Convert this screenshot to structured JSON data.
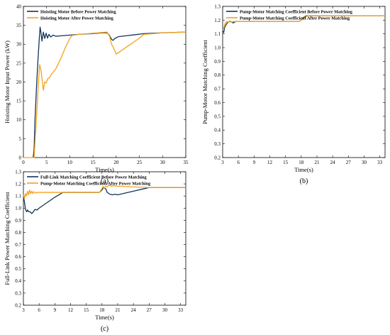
{
  "colors": {
    "before": "#12355b",
    "after": "#f5a21b",
    "axis": "#000000"
  },
  "chart_data": [
    {
      "id": "a",
      "type": "line",
      "caption": "(a)",
      "xlabel": "Time(s)",
      "ylabel": "Hoisting Motor Input Power (kW)",
      "xlim": [
        0,
        35
      ],
      "ylim": [
        0,
        40
      ],
      "xticks": [
        0,
        5,
        10,
        15,
        20,
        25,
        30,
        35
      ],
      "yticks": [
        0,
        5,
        10,
        15,
        20,
        25,
        30,
        35,
        40
      ],
      "tick_decimals": 0,
      "legend_position": "top-left",
      "series": [
        {
          "name": "Hoisting Motor Before Power Matching",
          "color_key": "before",
          "points": [
            [
              2.1,
              0
            ],
            [
              2.3,
              2
            ],
            [
              2.5,
              10
            ],
            [
              2.8,
              18
            ],
            [
              3.1,
              25
            ],
            [
              3.4,
              31
            ],
            [
              3.6,
              34.5
            ],
            [
              3.8,
              33
            ],
            [
              4.0,
              30.8
            ],
            [
              4.3,
              33.2
            ],
            [
              4.6,
              31.5
            ],
            [
              4.9,
              32.9
            ],
            [
              5.2,
              31.6
            ],
            [
              5.5,
              32.6
            ],
            [
              5.9,
              31.9
            ],
            [
              6.4,
              32.4
            ],
            [
              7.0,
              32.1
            ],
            [
              8,
              32.2
            ],
            [
              10,
              32.4
            ],
            [
              12,
              32.6
            ],
            [
              15,
              32.8
            ],
            [
              17,
              33.0
            ],
            [
              18,
              33.0
            ],
            [
              18.5,
              32.4
            ],
            [
              19,
              31.3
            ],
            [
              19.3,
              31.0
            ],
            [
              19.7,
              31.5
            ],
            [
              20.5,
              32.0
            ],
            [
              22,
              32.2
            ],
            [
              24,
              32.5
            ],
            [
              26,
              32.8
            ],
            [
              28,
              32.9
            ],
            [
              30,
              33.0
            ],
            [
              32,
              33.1
            ],
            [
              35,
              33.2
            ]
          ]
        },
        {
          "name": "Hoisting Motor After Power Matching",
          "color_key": "after",
          "points": [
            [
              0,
              0
            ],
            [
              2.3,
              0
            ],
            [
              2.5,
              4
            ],
            [
              2.8,
              10
            ],
            [
              3.2,
              19
            ],
            [
              3.5,
              24.6
            ],
            [
              3.8,
              23
            ],
            [
              4.1,
              20
            ],
            [
              4.3,
              17.8
            ],
            [
              4.6,
              20
            ],
            [
              4.9,
              19.7
            ],
            [
              5.3,
              21
            ],
            [
              5.6,
              21.1
            ],
            [
              6,
              22
            ],
            [
              7,
              23.5
            ],
            [
              8,
              26
            ],
            [
              9,
              29
            ],
            [
              10,
              31.5
            ],
            [
              10.5,
              32.3
            ],
            [
              12,
              32.6
            ],
            [
              15,
              32.9
            ],
            [
              17,
              33.1
            ],
            [
              18,
              33.2
            ],
            [
              18.6,
              32.0
            ],
            [
              19,
              30.0
            ],
            [
              19.5,
              28.8
            ],
            [
              20,
              27.4
            ],
            [
              21,
              28.2
            ],
            [
              23,
              29.9
            ],
            [
              25,
              31.6
            ],
            [
              26,
              32.6
            ],
            [
              28,
              32.8
            ],
            [
              30,
              33.0
            ],
            [
              32,
              33.1
            ],
            [
              35,
              33.2
            ]
          ]
        }
      ]
    },
    {
      "id": "b",
      "type": "line",
      "caption": "(b)",
      "xlabel": "Time(s)",
      "ylabel": "Pump-Motor Matching Coefficient",
      "xlim": [
        3,
        34
      ],
      "ylim": [
        0.2,
        1.3
      ],
      "xticks": [
        3,
        6,
        9,
        12,
        15,
        18,
        21,
        24,
        27,
        30,
        33
      ],
      "yticks": [
        0.2,
        0.3,
        0.4,
        0.5,
        0.6,
        0.7,
        0.8,
        0.9,
        1.0,
        1.1,
        1.2,
        1.3
      ],
      "tick_decimals": 1,
      "legend_position": "top-left",
      "series": [
        {
          "name": "Pump-Motor Matching Coefficient Before Power Matching",
          "color_key": "before",
          "points": [
            [
              3,
              1.12
            ],
            [
              3.2,
              1.11
            ],
            [
              3.4,
              1.15
            ],
            [
              3.7,
              1.17
            ],
            [
              4,
              1.185
            ],
            [
              4.5,
              1.19
            ],
            [
              5,
              1.18
            ],
            [
              5.5,
              1.19
            ],
            [
              6,
              1.19
            ],
            [
              10,
              1.19
            ],
            [
              15,
              1.19
            ],
            [
              17.5,
              1.19
            ],
            [
              18,
              1.2
            ],
            [
              18.5,
              1.22
            ],
            [
              19,
              1.23
            ],
            [
              19.5,
              1.232
            ],
            [
              22,
              1.232
            ],
            [
              27,
              1.232
            ],
            [
              34,
              1.232
            ]
          ]
        },
        {
          "name": "Pump-Motor Matching Coefficient After Power Matching",
          "color_key": "after",
          "points": [
            [
              3,
              1.13
            ],
            [
              3.2,
              1.14
            ],
            [
              3.5,
              1.18
            ],
            [
              3.8,
              1.19
            ],
            [
              4.1,
              1.185
            ],
            [
              4.4,
              1.195
            ],
            [
              4.7,
              1.185
            ],
            [
              5.0,
              1.19
            ],
            [
              5.5,
              1.19
            ],
            [
              8,
              1.19
            ],
            [
              12,
              1.19
            ],
            [
              17.5,
              1.19
            ],
            [
              18,
              1.2
            ],
            [
              18.5,
              1.225
            ],
            [
              19,
              1.235
            ],
            [
              19.3,
              1.23
            ],
            [
              19.6,
              1.233
            ],
            [
              22,
              1.232
            ],
            [
              27,
              1.232
            ],
            [
              34,
              1.232
            ]
          ]
        }
      ]
    },
    {
      "id": "c",
      "type": "line",
      "caption": "(c)",
      "xlabel": "Time(s)",
      "ylabel": "Full-Link Power Matching Coefficient",
      "xlim": [
        3,
        34
      ],
      "ylim": [
        0.2,
        1.3
      ],
      "xticks": [
        3,
        6,
        9,
        12,
        15,
        18,
        21,
        24,
        27,
        30,
        33
      ],
      "yticks": [
        0.2,
        0.3,
        0.4,
        0.5,
        0.6,
        0.7,
        0.8,
        0.9,
        1.0,
        1.1,
        1.2,
        1.3
      ],
      "tick_decimals": 1,
      "legend_position": "top-left",
      "series": [
        {
          "name": "Full-Link Matching Coefficient Before Power Matching",
          "color_key": "before",
          "points": [
            [
              3,
              1.1
            ],
            [
              3.2,
              1.05
            ],
            [
              3.4,
              0.99
            ],
            [
              3.6,
              0.97
            ],
            [
              3.8,
              0.985
            ],
            [
              4.0,
              0.97
            ],
            [
              4.3,
              0.97
            ],
            [
              4.6,
              0.955
            ],
            [
              4.9,
              0.97
            ],
            [
              5.2,
              0.99
            ],
            [
              5.6,
              0.985
            ],
            [
              6,
              1.0
            ],
            [
              7,
              1.03
            ],
            [
              8,
              1.06
            ],
            [
              9,
              1.09
            ],
            [
              10,
              1.115
            ],
            [
              10.5,
              1.13
            ],
            [
              12,
              1.13
            ],
            [
              15,
              1.13
            ],
            [
              17.5,
              1.13
            ],
            [
              18,
              1.15
            ],
            [
              18.3,
              1.17
            ],
            [
              18.7,
              1.16
            ],
            [
              19,
              1.13
            ],
            [
              19.5,
              1.115
            ],
            [
              20,
              1.11
            ],
            [
              20.5,
              1.115
            ],
            [
              21,
              1.11
            ],
            [
              22,
              1.12
            ],
            [
              24,
              1.14
            ],
            [
              26,
              1.16
            ],
            [
              27,
              1.17
            ],
            [
              30,
              1.17
            ],
            [
              34,
              1.17
            ]
          ]
        },
        {
          "name": "Pump-Motor Matching Coefficient After Power Matching",
          "color_key": "after",
          "points": [
            [
              3,
              1.11
            ],
            [
              3.2,
              1.08
            ],
            [
              3.4,
              1.12
            ],
            [
              3.6,
              1.1
            ],
            [
              3.8,
              1.14
            ],
            [
              4.0,
              1.11
            ],
            [
              4.2,
              1.15
            ],
            [
              4.4,
              1.12
            ],
            [
              4.6,
              1.14
            ],
            [
              4.8,
              1.12
            ],
            [
              5.0,
              1.135
            ],
            [
              5.4,
              1.125
            ],
            [
              5.8,
              1.13
            ],
            [
              7,
              1.13
            ],
            [
              10,
              1.13
            ],
            [
              15,
              1.13
            ],
            [
              17.5,
              1.13
            ],
            [
              18,
              1.16
            ],
            [
              18.2,
              1.18
            ],
            [
              18.4,
              1.165
            ],
            [
              18.7,
              1.18
            ],
            [
              19,
              1.175
            ],
            [
              19.4,
              1.19
            ],
            [
              19.8,
              1.18
            ],
            [
              20.3,
              1.185
            ],
            [
              21,
              1.18
            ],
            [
              22,
              1.18
            ],
            [
              24,
              1.175
            ],
            [
              27,
              1.17
            ],
            [
              30,
              1.17
            ],
            [
              34,
              1.17
            ]
          ]
        }
      ]
    }
  ]
}
